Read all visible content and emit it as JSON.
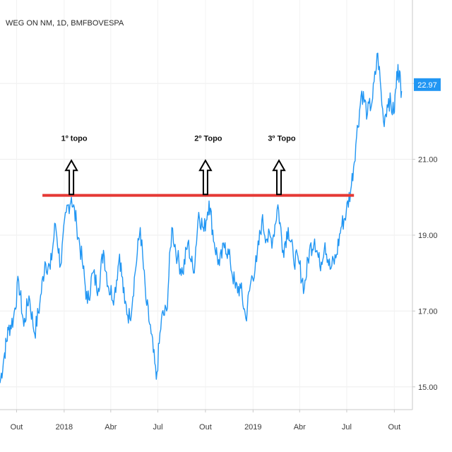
{
  "chart_data": {
    "type": "line",
    "title": "WEG ON NM, 1D, BMFBOVESPA",
    "y_ticks": [
      "15.00",
      "17.00",
      "19.00",
      "21.00",
      "23.00"
    ],
    "y_tick_values": [
      15,
      17,
      19,
      21,
      23
    ],
    "ylim": [
      14.4,
      25.2
    ],
    "x_ticks": [
      "Out",
      "2018",
      "Abr",
      "Jul",
      "Out",
      "2019",
      "Abr",
      "Jul",
      "Out"
    ],
    "x_tick_dates": [
      "2017-10-01",
      "2018-01-01",
      "2018-04-01",
      "2018-07-01",
      "2018-10-01",
      "2019-01-01",
      "2019-04-01",
      "2019-07-01",
      "2019-10-01"
    ],
    "xlim": [
      "2017-08-30",
      "2019-11-05"
    ],
    "current_price": "22.97",
    "current_price_value": 22.97,
    "resistance_line": {
      "y": 20.05,
      "x_start": "2017-11-20",
      "x_end": "2019-07-15"
    },
    "annotations": [
      {
        "label": "1º topo",
        "date": "2018-01-15",
        "y": 20.0
      },
      {
        "label": "2º Topo",
        "date": "2018-10-01",
        "y": 20.0
      },
      {
        "label": "3º Topo",
        "date": "2019-02-20",
        "y": 20.0
      }
    ],
    "series": [
      {
        "color": "#2196f3",
        "x": [
          "2017-08-30",
          "2017-09-08",
          "2017-09-15",
          "2017-09-25",
          "2017-10-05",
          "2017-10-15",
          "2017-10-25",
          "2017-11-05",
          "2017-11-15",
          "2017-11-25",
          "2017-12-05",
          "2017-12-15",
          "2017-12-25",
          "2018-01-05",
          "2018-01-15",
          "2018-01-25",
          "2018-02-05",
          "2018-02-15",
          "2018-02-25",
          "2018-03-08",
          "2018-03-18",
          "2018-03-28",
          "2018-04-08",
          "2018-04-18",
          "2018-04-28",
          "2018-05-08",
          "2018-05-18",
          "2018-05-28",
          "2018-06-08",
          "2018-06-18",
          "2018-06-28",
          "2018-07-08",
          "2018-07-18",
          "2018-07-28",
          "2018-08-08",
          "2018-08-18",
          "2018-08-28",
          "2018-09-08",
          "2018-09-18",
          "2018-09-28",
          "2018-10-08",
          "2018-10-18",
          "2018-10-28",
          "2018-11-08",
          "2018-11-18",
          "2018-11-28",
          "2018-12-08",
          "2018-12-18",
          "2018-12-28",
          "2019-01-08",
          "2019-01-18",
          "2019-01-28",
          "2019-02-08",
          "2019-02-18",
          "2019-02-28",
          "2019-03-10",
          "2019-03-20",
          "2019-03-30",
          "2019-04-10",
          "2019-04-20",
          "2019-04-30",
          "2019-05-10",
          "2019-05-20",
          "2019-05-30",
          "2019-06-10",
          "2019-06-20",
          "2019-06-30",
          "2019-07-10",
          "2019-07-20",
          "2019-07-30",
          "2019-08-10",
          "2019-08-20",
          "2019-08-30",
          "2019-09-10",
          "2019-09-20",
          "2019-09-30",
          "2019-10-08",
          "2019-10-15"
        ],
        "y": [
          15.1,
          15.9,
          16.5,
          16.8,
          17.8,
          16.6,
          17.4,
          16.4,
          17.2,
          18.3,
          18.1,
          19.3,
          18.2,
          19.6,
          20.0,
          19.3,
          18.3,
          17.2,
          18.0,
          17.6,
          18.6,
          17.6,
          17.4,
          18.5,
          17.2,
          16.8,
          18.0,
          19.2,
          17.3,
          16.4,
          15.2,
          16.8,
          17.0,
          19.2,
          18.4,
          18.0,
          18.8,
          18.0,
          19.6,
          19.1,
          19.9,
          18.8,
          18.2,
          18.8,
          18.3,
          17.6,
          17.6,
          16.8,
          17.8,
          18.3,
          19.4,
          18.9,
          18.9,
          19.8,
          18.6,
          19.2,
          18.4,
          18.3,
          17.6,
          18.6,
          18.9,
          18.2,
          18.8,
          18.1,
          18.4,
          19.2,
          19.6,
          20.3,
          21.6,
          22.8,
          22.2,
          22.6,
          23.8,
          22.0,
          22.6,
          22.2,
          23.5,
          22.8
        ]
      }
    ]
  }
}
